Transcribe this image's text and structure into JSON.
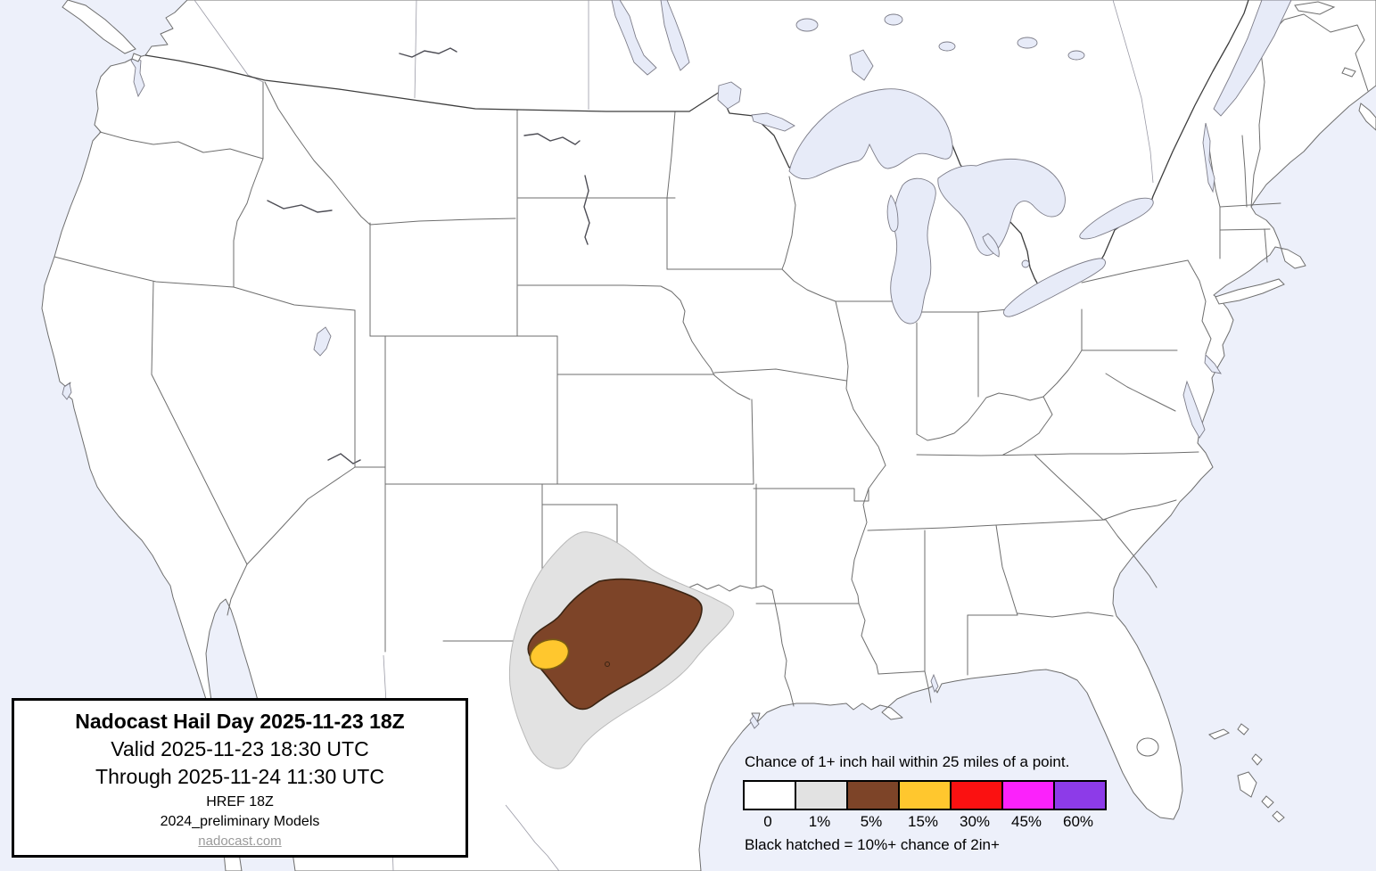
{
  "title_box": {
    "title": "Nadocast Hail Day 2025-11-23 18Z",
    "valid_line": "Valid 2025-11-23 18:30 UTC",
    "through_line": "Through 2025-11-24 11:30 UTC",
    "model_line": "HREF 18Z",
    "models_line": "2024_preliminary Models",
    "site_link": "nadocast.com"
  },
  "legend": {
    "title": "Chance of 1+ inch hail within 25 miles of a point.",
    "note": "Black hatched = 10%+ chance of 2in+",
    "bins": [
      {
        "label": "0",
        "color": "#ffffff"
      },
      {
        "label": "1%",
        "color": "#e2e2e2"
      },
      {
        "label": "5%",
        "color": "#7d4428"
      },
      {
        "label": "15%",
        "color": "#ffc72e"
      },
      {
        "label": "30%",
        "color": "#fb1111"
      },
      {
        "label": "45%",
        "color": "#fb22fb"
      },
      {
        "label": "60%",
        "color": "#8d3be8"
      }
    ]
  },
  "map": {
    "type": "probability-contour-forecast",
    "region": "Continental United States",
    "hail_probability_contours": [
      {
        "level": "1%",
        "color": "#e2e2e2",
        "area": "West Texas and North Texas into southwest Oklahoma"
      },
      {
        "level": "5%",
        "color": "#7d4428",
        "area": "Northwest and Central Texas"
      },
      {
        "level": "15%",
        "color": "#ffc72e",
        "area": "West Texas near the New Mexico state line"
      }
    ],
    "colors": {
      "water": "#edf0fa",
      "land": "#ffffff",
      "state_border": "#6e6e6e"
    }
  }
}
